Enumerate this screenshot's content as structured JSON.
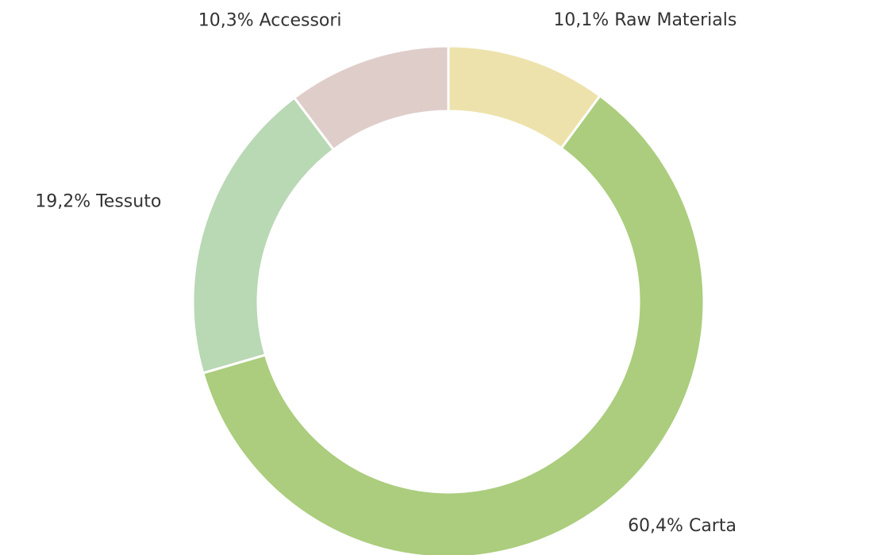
{
  "chart_data": {
    "type": "donut",
    "categories": [
      "Raw Materials",
      "Carta",
      "Tessuto",
      "Accessori"
    ],
    "values": [
      10.1,
      60.4,
      19.2,
      10.3
    ],
    "value_labels": [
      "10,1%",
      "60,4%",
      "19,2%",
      "10,3%"
    ],
    "colors": [
      "#ede2ab",
      "#abcd7d",
      "#b9d8b4",
      "#dfcdca"
    ]
  }
}
